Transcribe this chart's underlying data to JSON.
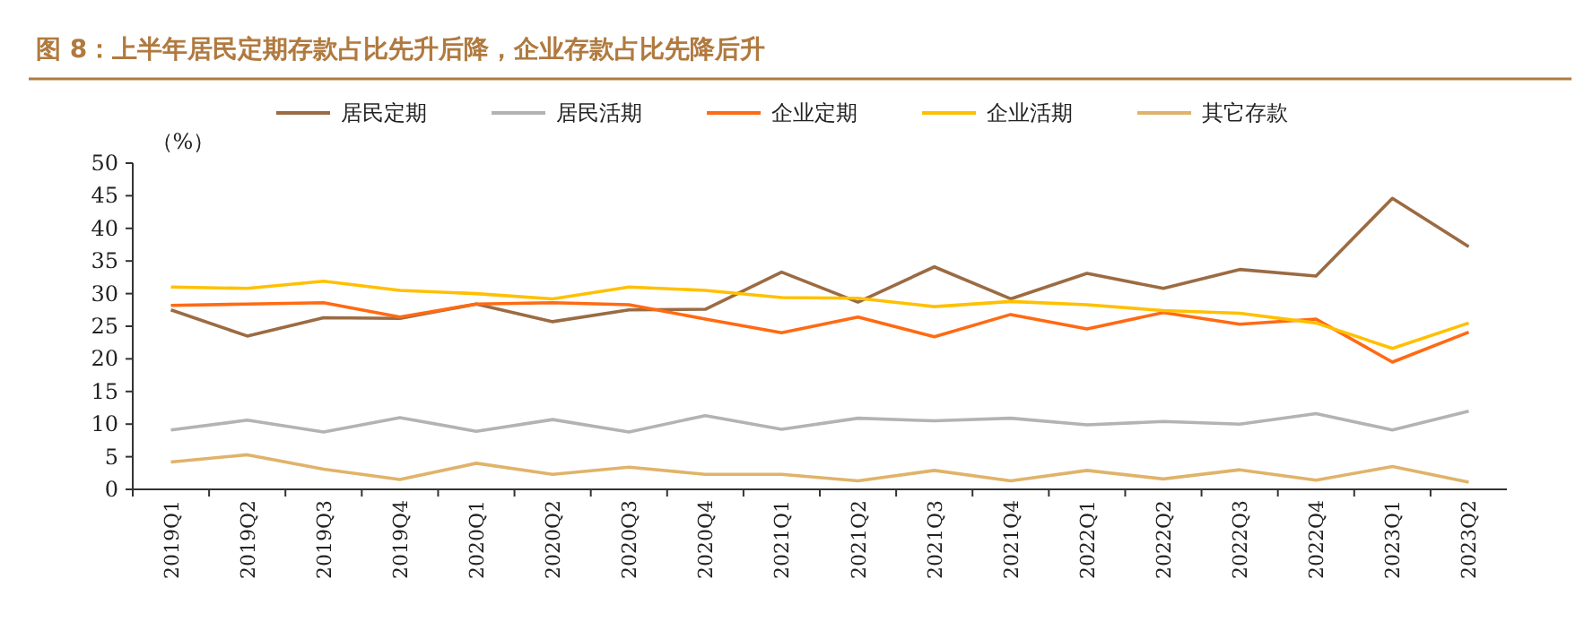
{
  "chart_data": {
    "type": "line",
    "title": "图 8：上半年居民定期存款占比先升后降，企业存款占比先降后升",
    "ylabel": "（%）",
    "categories": [
      "2019Q1",
      "2019Q2",
      "2019Q3",
      "2019Q4",
      "2020Q1",
      "2020Q2",
      "2020Q3",
      "2020Q4",
      "2021Q1",
      "2021Q2",
      "2021Q3",
      "2021Q4",
      "2022Q1",
      "2022Q2",
      "2022Q3",
      "2022Q4",
      "2023Q1",
      "2023Q2"
    ],
    "series": [
      {
        "name": "居民定期",
        "color": "#9b6b43",
        "values": [
          27.5,
          23.5,
          26.3,
          26.2,
          28.4,
          25.7,
          27.5,
          27.6,
          33.3,
          28.7,
          34.1,
          29.2,
          33.1,
          30.8,
          33.7,
          32.7,
          44.6,
          37.2
        ]
      },
      {
        "name": "居民活期",
        "color": "#b3b3b3",
        "values": [
          9.1,
          10.6,
          8.8,
          11.0,
          8.9,
          10.7,
          8.8,
          11.3,
          9.2,
          10.9,
          10.5,
          10.9,
          9.9,
          10.4,
          10.0,
          11.6,
          9.1,
          12.0
        ]
      },
      {
        "name": "企业定期",
        "color": "#ff6a13",
        "values": [
          28.2,
          28.4,
          28.6,
          26.4,
          28.4,
          28.6,
          28.3,
          26.1,
          24.0,
          26.4,
          23.4,
          26.8,
          24.6,
          27.1,
          25.3,
          26.1,
          19.5,
          24.1
        ]
      },
      {
        "name": "企业活期",
        "color": "#ffc000",
        "values": [
          31.0,
          30.8,
          31.9,
          30.5,
          30.0,
          29.2,
          31.0,
          30.5,
          29.4,
          29.3,
          28.0,
          28.8,
          28.3,
          27.4,
          27.0,
          25.5,
          21.6,
          25.5
        ]
      },
      {
        "name": "其它存款",
        "color": "#e0b36a",
        "values": [
          4.2,
          5.3,
          3.1,
          1.5,
          4.0,
          2.3,
          3.4,
          2.3,
          2.3,
          1.3,
          2.9,
          1.3,
          2.9,
          1.6,
          3.0,
          1.4,
          3.5,
          1.1
        ]
      }
    ],
    "ylim": [
      0,
      50
    ],
    "yticks": [
      0,
      5,
      10,
      15,
      20,
      25,
      30,
      35,
      40,
      45,
      50
    ],
    "legend": "top",
    "grid": false,
    "marker": "none",
    "line_style": "solid"
  }
}
